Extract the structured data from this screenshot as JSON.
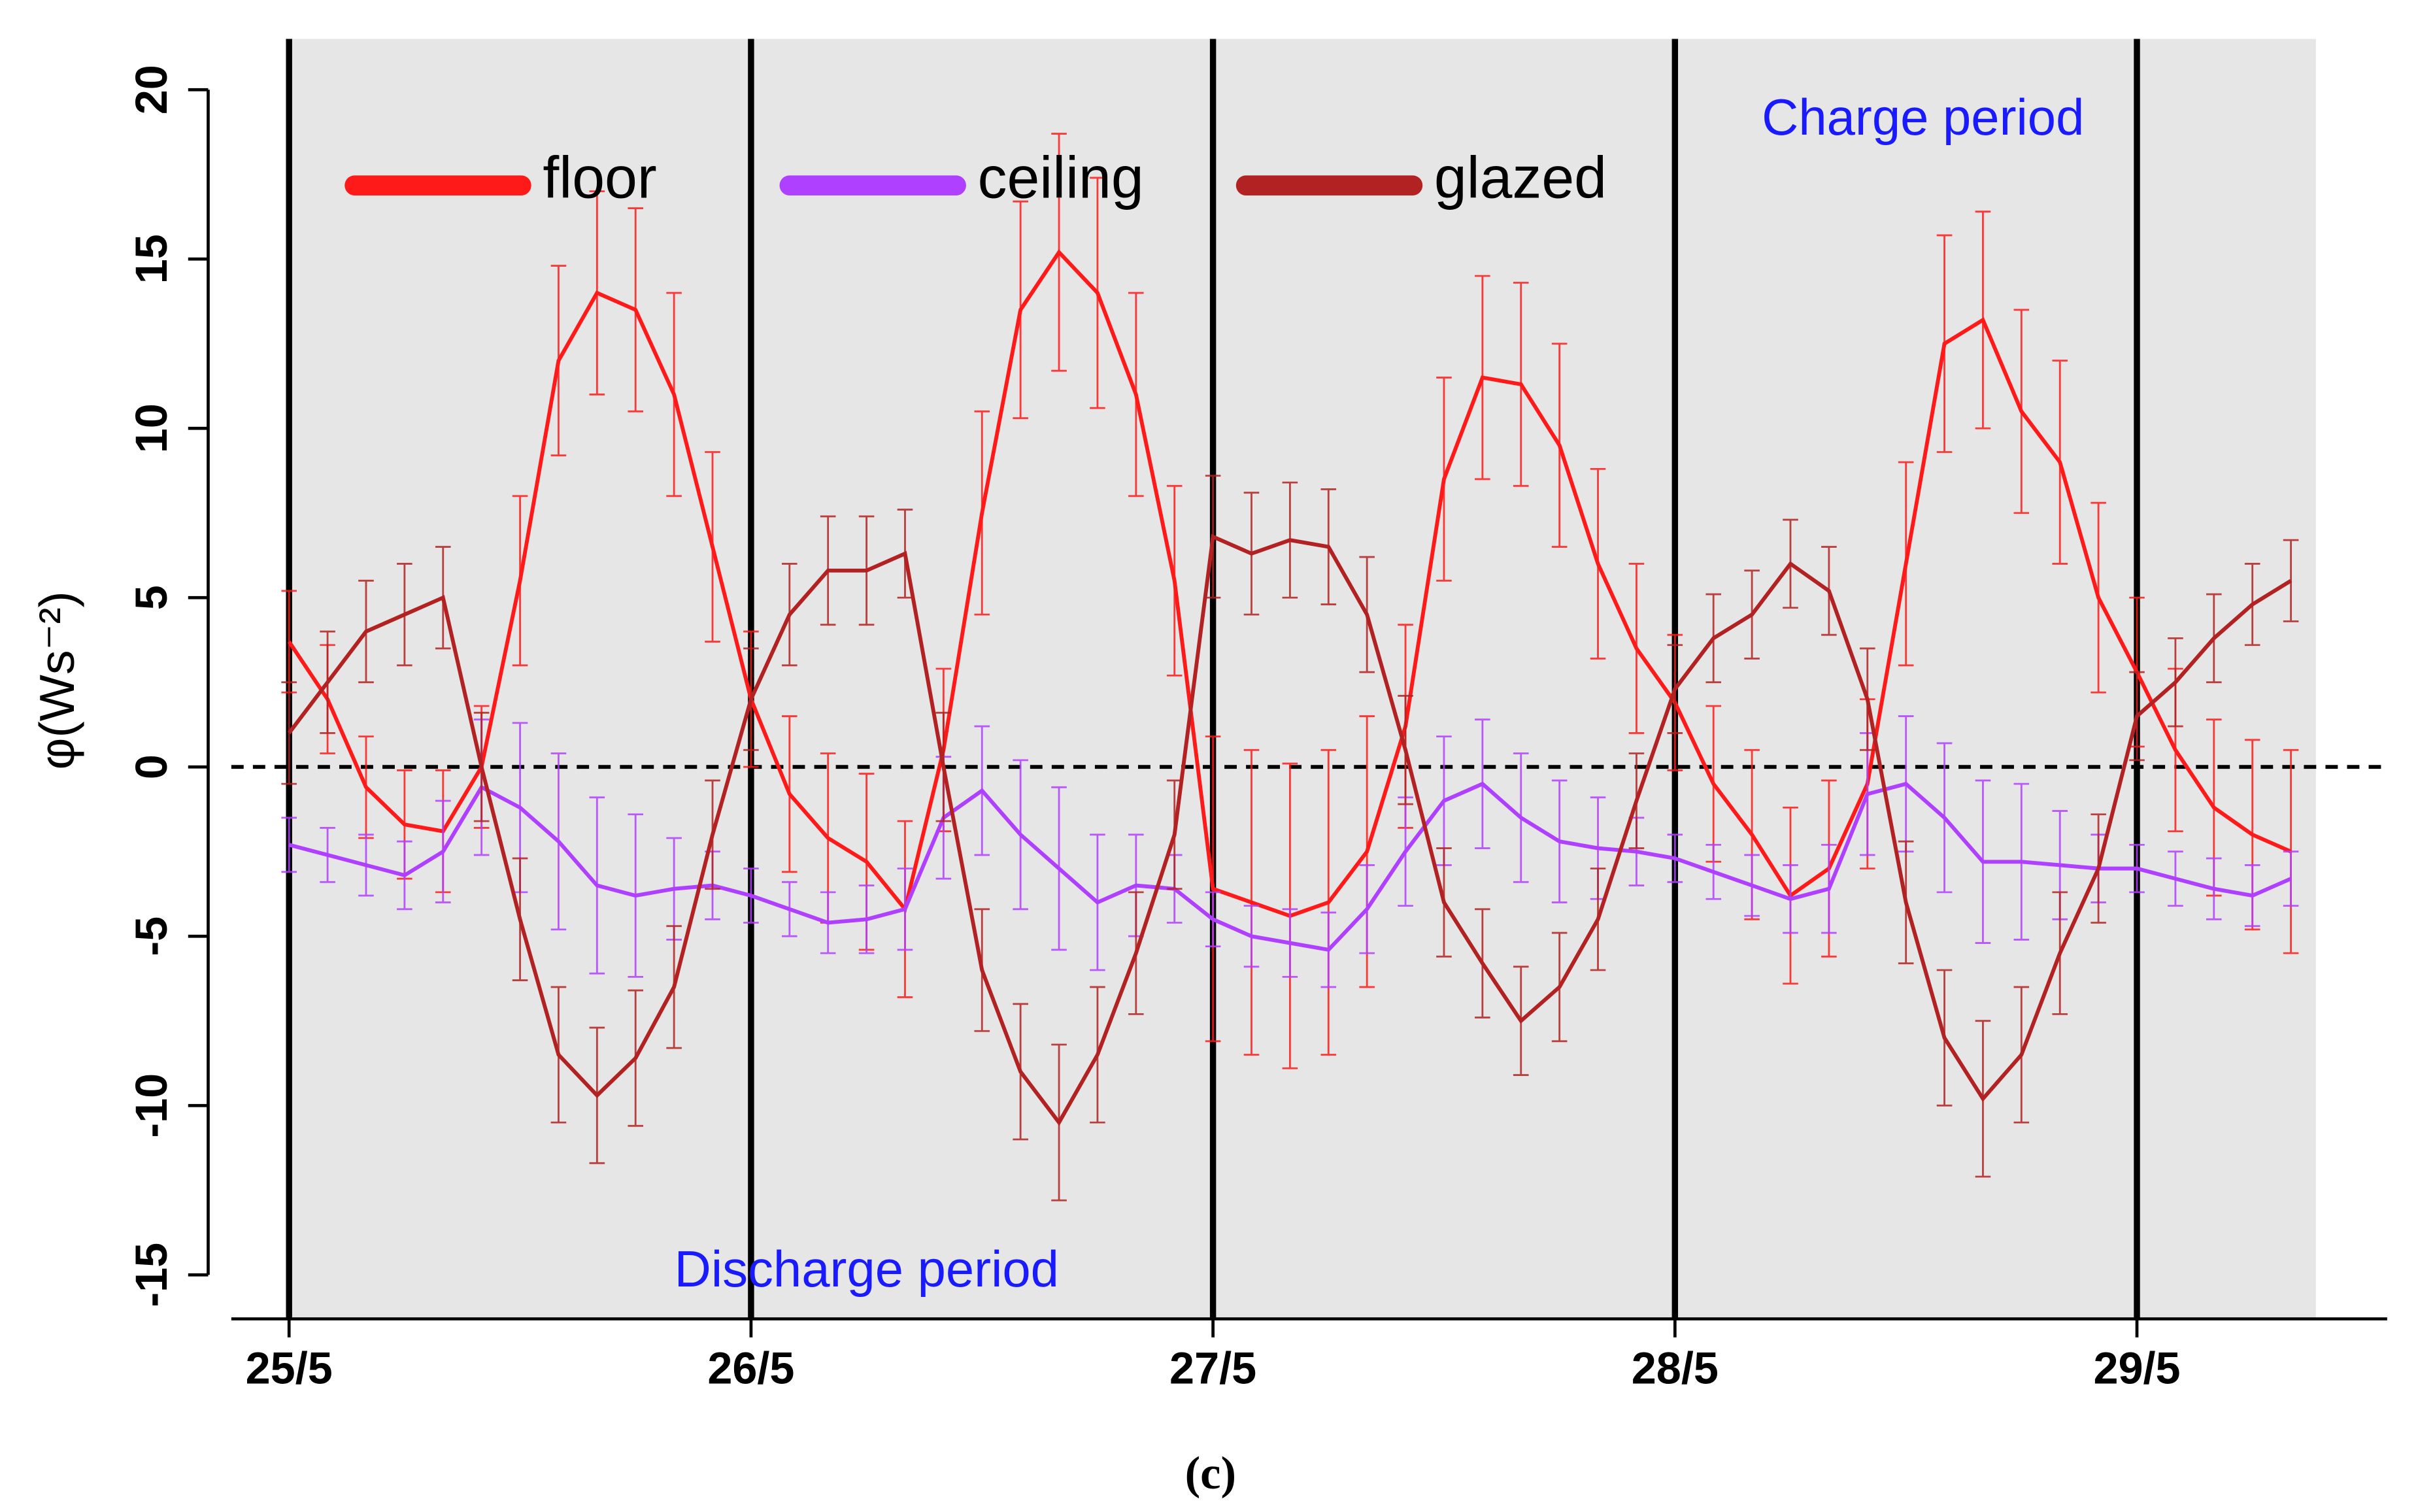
{
  "chart_data": {
    "type": "line",
    "ylabel": "φ(Ws⁻²)",
    "caption": "(c)",
    "annotations": [
      "Charge period",
      "Discharge period"
    ],
    "x": [
      0,
      2,
      4,
      6,
      8,
      10,
      12,
      14,
      16,
      18,
      20,
      22,
      24,
      26,
      28,
      30,
      32,
      34,
      36,
      38,
      40,
      42,
      44,
      46,
      48,
      50,
      52,
      54,
      56,
      58,
      60,
      62,
      64,
      66,
      68,
      70,
      72,
      74,
      76,
      78,
      80,
      82,
      84,
      86,
      88,
      90,
      92,
      94,
      96,
      98,
      100,
      102,
      104
    ],
    "xlim": [
      -3,
      109
    ],
    "xticks": [
      {
        "value": 0,
        "label": "25/5"
      },
      {
        "value": 24,
        "label": "26/5"
      },
      {
        "value": 48,
        "label": "27/5"
      },
      {
        "value": 72,
        "label": "28/5"
      },
      {
        "value": 96,
        "label": "29/5"
      }
    ],
    "ylim": [
      -16.3,
      21.5
    ],
    "yticks": [
      -15,
      -10,
      -5,
      0,
      5,
      10,
      15,
      20
    ],
    "hline": 0,
    "legend": "top-left",
    "series": [
      {
        "name": "floor",
        "color": "#ff1a1a",
        "values": [
          3.7,
          2.0,
          -0.6,
          -1.7,
          -1.9,
          0.0,
          5.5,
          12.0,
          14.0,
          13.5,
          11.0,
          6.5,
          2.0,
          -0.8,
          -2.1,
          -2.8,
          -4.2,
          0.5,
          7.5,
          13.5,
          15.2,
          14.0,
          11.0,
          5.5,
          -3.6,
          -4.0,
          -4.4,
          -4.0,
          -2.5,
          1.2,
          8.5,
          11.5,
          11.3,
          9.5,
          6.0,
          3.5,
          1.9,
          -0.5,
          -2.0,
          -3.8,
          -3.0,
          -0.5,
          6.0,
          12.5,
          13.2,
          10.5,
          9.0,
          5.0,
          2.8,
          0.5,
          -1.2,
          -2.0,
          -2.5
        ],
        "errors": [
          1.5,
          1.6,
          1.5,
          1.6,
          1.8,
          1.8,
          2.5,
          2.8,
          3.0,
          3.0,
          3.0,
          2.8,
          2.0,
          2.3,
          2.5,
          2.6,
          2.6,
          2.4,
          3.0,
          3.2,
          3.5,
          3.4,
          3.0,
          2.8,
          4.5,
          4.5,
          4.5,
          4.5,
          4.0,
          3.0,
          3.0,
          3.0,
          3.0,
          3.0,
          2.8,
          2.5,
          2.0,
          2.3,
          2.5,
          2.6,
          2.6,
          2.5,
          3.0,
          3.2,
          3.2,
          3.0,
          3.0,
          2.8,
          2.2,
          2.4,
          2.6,
          2.8,
          3.0
        ]
      },
      {
        "name": "ceiling",
        "color": "#b040ff",
        "values": [
          -2.3,
          -2.6,
          -2.9,
          -3.2,
          -2.5,
          -0.6,
          -1.2,
          -2.2,
          -3.5,
          -3.8,
          -3.6,
          -3.5,
          -3.8,
          -4.2,
          -4.6,
          -4.5,
          -4.2,
          -1.5,
          -0.7,
          -2.0,
          -3.0,
          -4.0,
          -3.5,
          -3.6,
          -4.5,
          -5.0,
          -5.2,
          -5.4,
          -4.2,
          -2.5,
          -1.0,
          -0.5,
          -1.5,
          -2.2,
          -2.4,
          -2.5,
          -2.7,
          -3.1,
          -3.5,
          -3.9,
          -3.6,
          -0.8,
          -0.5,
          -1.5,
          -2.8,
          -2.8,
          -2.9,
          -3.0,
          -3.0,
          -3.3,
          -3.6,
          -3.8,
          -3.3
        ],
        "errors": [
          0.8,
          0.8,
          0.9,
          1.0,
          1.5,
          2.0,
          2.5,
          2.6,
          2.6,
          2.4,
          1.5,
          1.0,
          0.8,
          0.8,
          0.9,
          1.0,
          1.2,
          1.8,
          1.9,
          2.2,
          2.4,
          2.0,
          1.5,
          1.0,
          0.8,
          0.9,
          1.0,
          1.1,
          1.3,
          1.6,
          1.9,
          1.9,
          1.9,
          1.8,
          1.5,
          1.0,
          0.7,
          0.8,
          0.9,
          1.0,
          1.3,
          1.8,
          2.0,
          2.2,
          2.4,
          2.3,
          1.6,
          1.0,
          0.7,
          0.8,
          0.9,
          0.9,
          0.8
        ]
      },
      {
        "name": "glazed",
        "color": "#b22222",
        "values": [
          1.0,
          2.5,
          4.0,
          4.5,
          5.0,
          0.0,
          -4.5,
          -8.5,
          -9.7,
          -8.6,
          -6.5,
          -2.0,
          2.0,
          4.5,
          5.8,
          5.8,
          6.3,
          0.0,
          -6.0,
          -9.0,
          -10.5,
          -8.5,
          -5.5,
          -2.0,
          6.8,
          6.3,
          6.7,
          6.5,
          4.5,
          0.5,
          -4.0,
          -5.8,
          -7.5,
          -6.5,
          -4.5,
          -1.0,
          2.3,
          3.8,
          4.5,
          6.0,
          5.2,
          2.0,
          -4.0,
          -8.0,
          -9.8,
          -8.5,
          -5.5,
          -3.0,
          1.5,
          2.5,
          3.8,
          4.8,
          5.5
        ],
        "errors": [
          1.5,
          1.5,
          1.5,
          1.5,
          1.5,
          1.6,
          1.8,
          2.0,
          2.0,
          2.0,
          1.8,
          1.6,
          1.5,
          1.5,
          1.6,
          1.6,
          1.3,
          1.6,
          1.8,
          2.0,
          2.3,
          2.0,
          1.8,
          1.6,
          1.8,
          1.8,
          1.7,
          1.7,
          1.7,
          1.6,
          1.6,
          1.6,
          1.6,
          1.6,
          1.5,
          1.4,
          1.3,
          1.3,
          1.3,
          1.3,
          1.3,
          1.5,
          1.8,
          2.0,
          2.3,
          2.0,
          1.8,
          1.6,
          1.3,
          1.3,
          1.3,
          1.2,
          1.2
        ]
      }
    ]
  }
}
